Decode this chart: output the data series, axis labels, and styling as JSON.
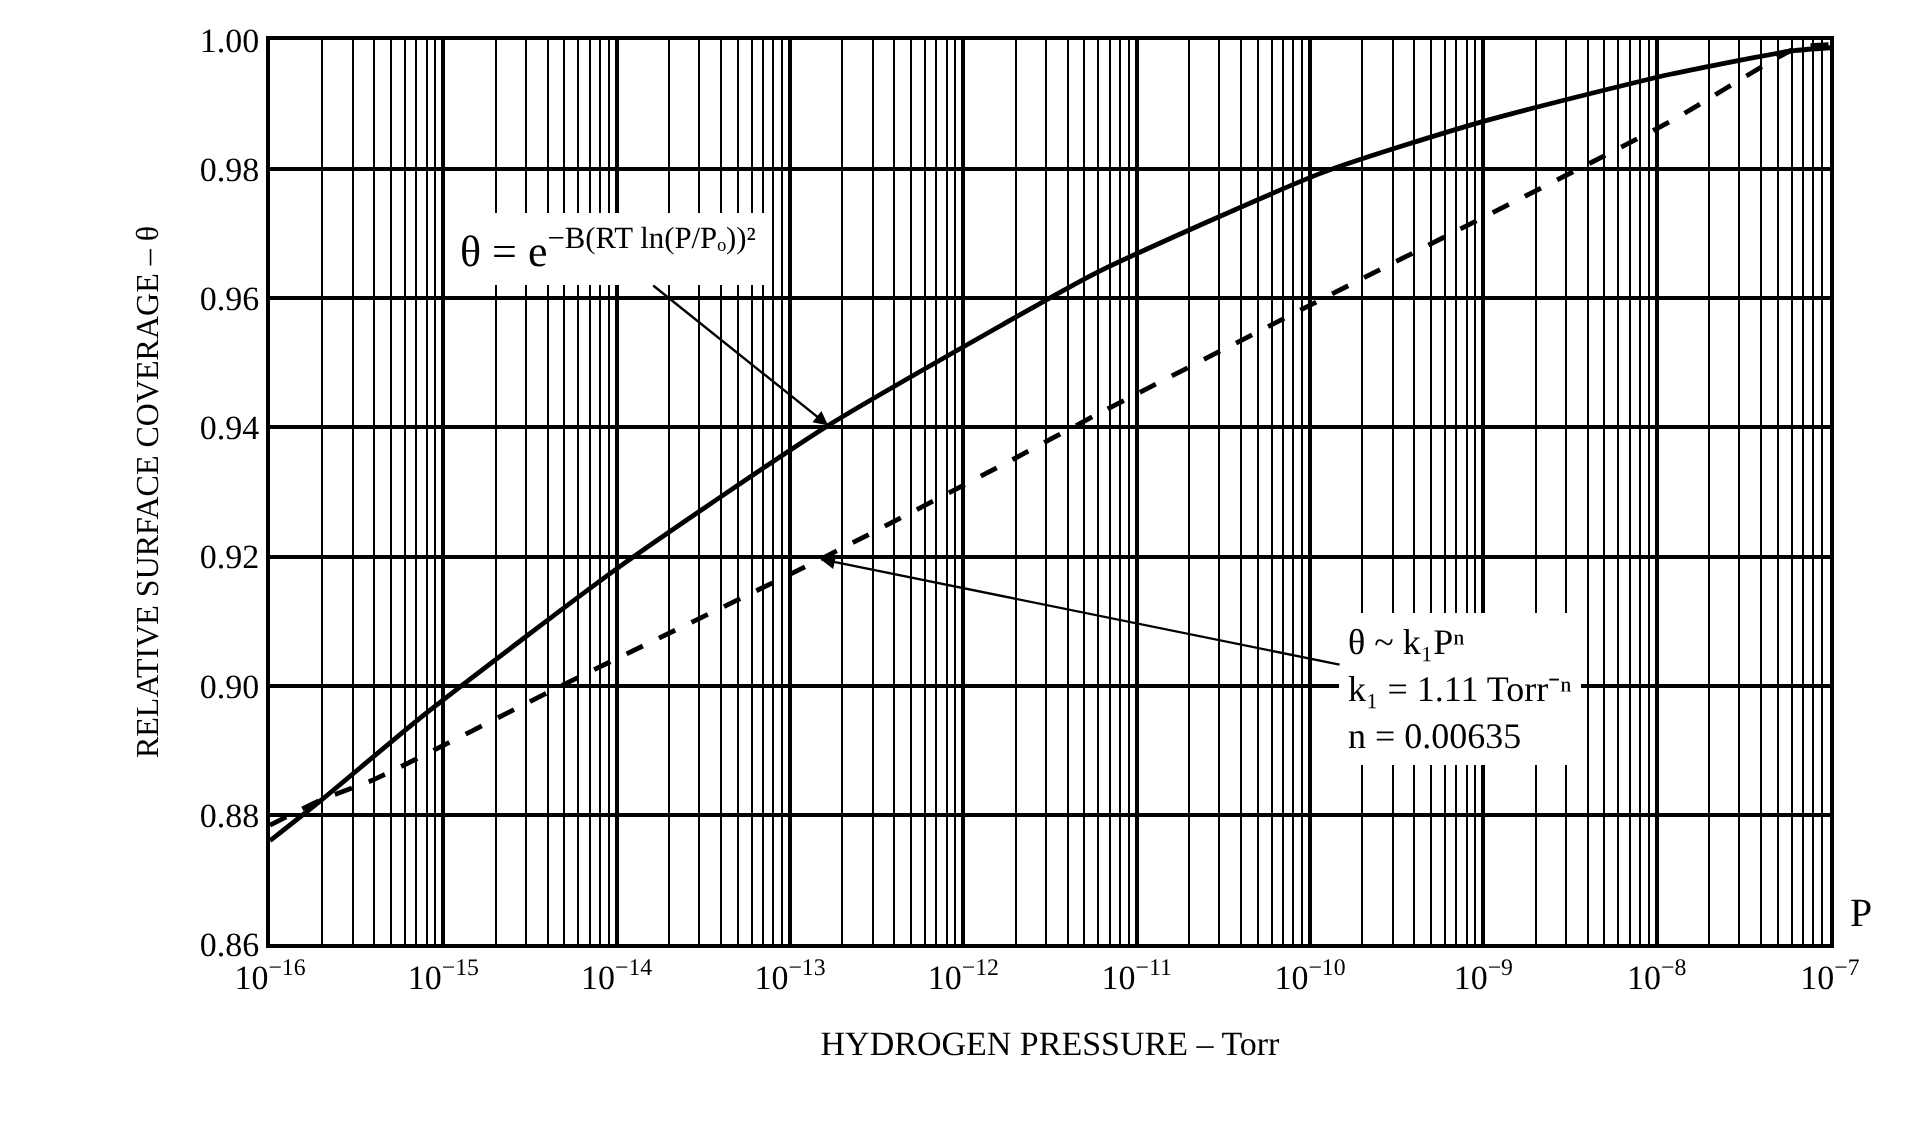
{
  "chart_data": {
    "type": "line",
    "xlabel": "HYDROGEN PRESSURE – Torr",
    "ylabel": "RELATIVE SURFACE COVERAGE – θ",
    "log": "x",
    "grid": true,
    "marker": "none",
    "xlim": [
      1e-16,
      1e-07
    ],
    "xticks": [
      {
        "value": 1e-16,
        "label": "10$^{−16}$"
      },
      {
        "value": 1e-15,
        "label": "10$^{−15}$"
      },
      {
        "value": 1e-14,
        "label": "10$^{−14}$"
      },
      {
        "value": 1e-13,
        "label": "10$^{−13}$"
      },
      {
        "value": 1e-12,
        "label": "10$^{−12}$"
      },
      {
        "value": 1e-11,
        "label": "10$^{−11}$"
      },
      {
        "value": 1e-10,
        "label": "10$^{−10}$"
      },
      {
        "value": 1e-09,
        "label": "10$^{−9}$"
      },
      {
        "value": 1e-08,
        "label": "10$^{−8}$"
      },
      {
        "value": 1e-07,
        "label": "10$^{−7}$"
      }
    ],
    "ylim": [
      0.86,
      1.0
    ],
    "yticks": [
      0.86,
      0.88,
      {
        "value": 0.9,
        "label": "0.90"
      },
      0.92,
      0.94,
      0.96,
      0.98,
      {
        "value": 1.0,
        "label": "1.00"
      }
    ],
    "series": [
      {
        "color": "#000000",
        "line_style": "solid",
        "x": [
          1e-16,
          2e-16,
          8e-16,
          1.06e-14,
          1.66e-13,
          1.68e-12,
          6e-12,
          1.19e-10,
          1e-09,
          1.2e-08,
          6e-08,
          1e-07
        ],
        "values": [
          0.876,
          0.8824,
          0.8958,
          0.9186,
          0.9403,
          0.9559,
          0.9641,
          0.9795,
          0.9874,
          0.9947,
          0.9983,
          0.9988
        ]
      },
      {
        "color": "#000000",
        "line_style": "dashed",
        "x": [
          1e-16,
          2e-16,
          4e-16,
          4.8e-15,
          1.5e-13,
          1.68e-12,
          5.8e-12,
          1.1e-10,
          1.2e-08,
          6.5e-08,
          1e-07
        ],
        "values": [
          0.8784,
          0.8824,
          0.8855,
          0.9,
          0.9196,
          0.9342,
          0.9419,
          0.9595,
          0.9874,
          0.9988,
          0.9993
        ]
      }
    ],
    "annotations": [
      {
        "text": "θ = e$^{−B(RT ln(P/Pₒ))²}$",
        "x": 1.66e-13,
        "y": 0.9403
      },
      {
        "text": "θ ~ k₁Pⁿ\nk₁ = 1.11 Torr⁻ⁿ\nn = 0.00635",
        "x": 1.5e-13,
        "y": 0.9196
      },
      "P"
    ]
  }
}
